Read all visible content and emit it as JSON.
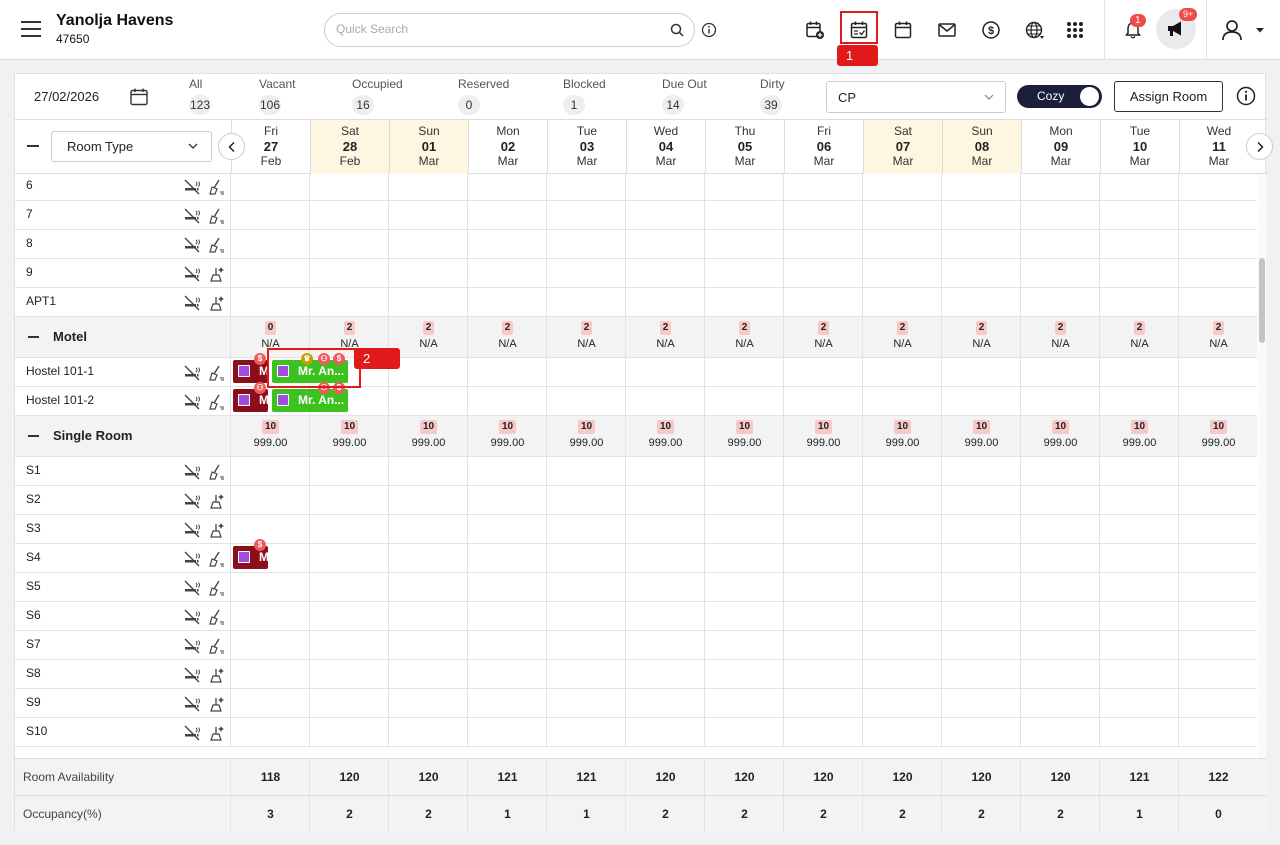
{
  "header": {
    "hotel_name": "Yanolja Havens",
    "hotel_id": "47650",
    "search_placeholder": "Quick Search",
    "bell_badge": "1",
    "announce_badge": "9+"
  },
  "annotations": {
    "tag1": "1",
    "tag2": "2"
  },
  "filters": {
    "date": "27/02/2026",
    "stats": [
      {
        "label": "All",
        "count": "123"
      },
      {
        "label": "Vacant",
        "count": "106"
      },
      {
        "label": "Occupied",
        "count": "16"
      },
      {
        "label": "Reserved",
        "count": "0"
      },
      {
        "label": "Blocked",
        "count": "1"
      },
      {
        "label": "Due Out",
        "count": "14"
      },
      {
        "label": "Dirty",
        "count": "39"
      }
    ],
    "rate_plan": "CP",
    "view_toggle": "Cozy",
    "assign_room": "Assign Room"
  },
  "grid": {
    "room_type_select": "Room Type",
    "days": [
      {
        "dow": "Fri",
        "d": "27",
        "m": "Feb"
      },
      {
        "dow": "Sat",
        "d": "28",
        "m": "Feb"
      },
      {
        "dow": "Sun",
        "d": "01",
        "m": "Mar"
      },
      {
        "dow": "Mon",
        "d": "02",
        "m": "Mar"
      },
      {
        "dow": "Tue",
        "d": "03",
        "m": "Mar"
      },
      {
        "dow": "Wed",
        "d": "04",
        "m": "Mar"
      },
      {
        "dow": "Thu",
        "d": "05",
        "m": "Mar"
      },
      {
        "dow": "Fri",
        "d": "06",
        "m": "Mar"
      },
      {
        "dow": "Sat",
        "d": "07",
        "m": "Mar"
      },
      {
        "dow": "Sun",
        "d": "08",
        "m": "Mar"
      },
      {
        "dow": "Mon",
        "d": "09",
        "m": "Mar"
      },
      {
        "dow": "Tue",
        "d": "10",
        "m": "Mar"
      },
      {
        "dow": "Wed",
        "d": "11",
        "m": "Mar"
      }
    ],
    "rooms_top": [
      "6",
      "7",
      "8",
      "9",
      "APT1"
    ],
    "motel": {
      "name": "Motel",
      "avail": [
        "0",
        "2",
        "2",
        "2",
        "2",
        "2",
        "2",
        "2",
        "2",
        "2",
        "2",
        "2",
        "2"
      ],
      "price": "N/A",
      "rooms": [
        "Hostel 101-1",
        "Hostel 101-2"
      ]
    },
    "single": {
      "name": "Single Room",
      "avail": [
        "10",
        "10",
        "10",
        "10",
        "10",
        "10",
        "10",
        "10",
        "10",
        "10",
        "10",
        "10",
        "10"
      ],
      "price": "999.00",
      "rooms": [
        "S1",
        "S2",
        "S3",
        "S4",
        "S5",
        "S6",
        "S7",
        "S8",
        "S9",
        "S10"
      ]
    },
    "bookings": {
      "guest_short": "Mr. An...",
      "red_short": "M",
      "badge_dollar": "$"
    }
  },
  "footer": {
    "availability_label": "Room Availability",
    "availability": [
      "118",
      "120",
      "120",
      "121",
      "121",
      "120",
      "120",
      "120",
      "120",
      "120",
      "120",
      "121",
      "122"
    ],
    "occupancy_label": "Occupancy(%)",
    "occupancy": [
      "3",
      "2",
      "2",
      "1",
      "1",
      "2",
      "2",
      "2",
      "2",
      "2",
      "2",
      "1",
      "0"
    ]
  }
}
